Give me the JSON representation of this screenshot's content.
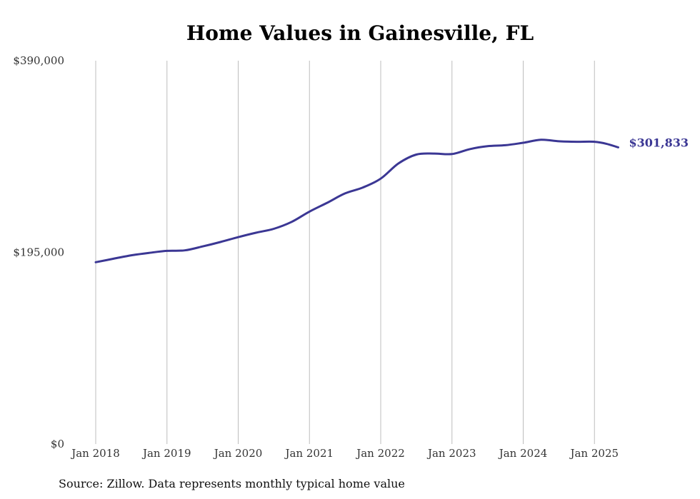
{
  "chart_data": {
    "type": "line",
    "title": "Home Values in Gainesville, FL",
    "xlabel": "",
    "ylabel": "",
    "ylim": [
      0,
      390000
    ],
    "y_ticks": [
      "$0",
      "$195,000",
      "$390,000"
    ],
    "y_tick_values": [
      0,
      195000,
      390000
    ],
    "x_ticks": [
      "Jan 2018",
      "Jan 2019",
      "Jan 2020",
      "Jan 2021",
      "Jan 2022",
      "Jan 2023",
      "Jan 2024",
      "Jan 2025"
    ],
    "x_tick_values": [
      "2018-01",
      "2019-01",
      "2020-01",
      "2021-01",
      "2022-01",
      "2023-01",
      "2024-01",
      "2025-01"
    ],
    "grid": "vertical",
    "series": [
      {
        "color": "#3b3794",
        "end_label": "$301,833",
        "points": [
          [
            "2018-01",
            185000
          ],
          [
            "2018-04",
            188500
          ],
          [
            "2018-07",
            192000
          ],
          [
            "2018-10",
            194500
          ],
          [
            "2019-01",
            196500
          ],
          [
            "2019-04",
            197000
          ],
          [
            "2019-07",
            201000
          ],
          [
            "2019-10",
            205500
          ],
          [
            "2020-01",
            210500
          ],
          [
            "2020-04",
            215000
          ],
          [
            "2020-07",
            219000
          ],
          [
            "2020-10",
            226000
          ],
          [
            "2021-01",
            236500
          ],
          [
            "2021-04",
            245500
          ],
          [
            "2021-07",
            255000
          ],
          [
            "2021-10",
            261000
          ],
          [
            "2022-01",
            270000
          ],
          [
            "2022-04",
            285500
          ],
          [
            "2022-07",
            294500
          ],
          [
            "2022-10",
            295500
          ],
          [
            "2023-01",
            295000
          ],
          [
            "2023-04",
            300000
          ],
          [
            "2023-07",
            303000
          ],
          [
            "2023-10",
            304000
          ],
          [
            "2024-01",
            306500
          ],
          [
            "2024-04",
            309500
          ],
          [
            "2024-07",
            308000
          ],
          [
            "2024-10",
            307500
          ],
          [
            "2025-01",
            307500
          ],
          [
            "2025-03",
            305500
          ],
          [
            "2025-05",
            301833
          ]
        ]
      }
    ]
  },
  "source_note": "Source: Zillow. Data represents monthly typical home value"
}
